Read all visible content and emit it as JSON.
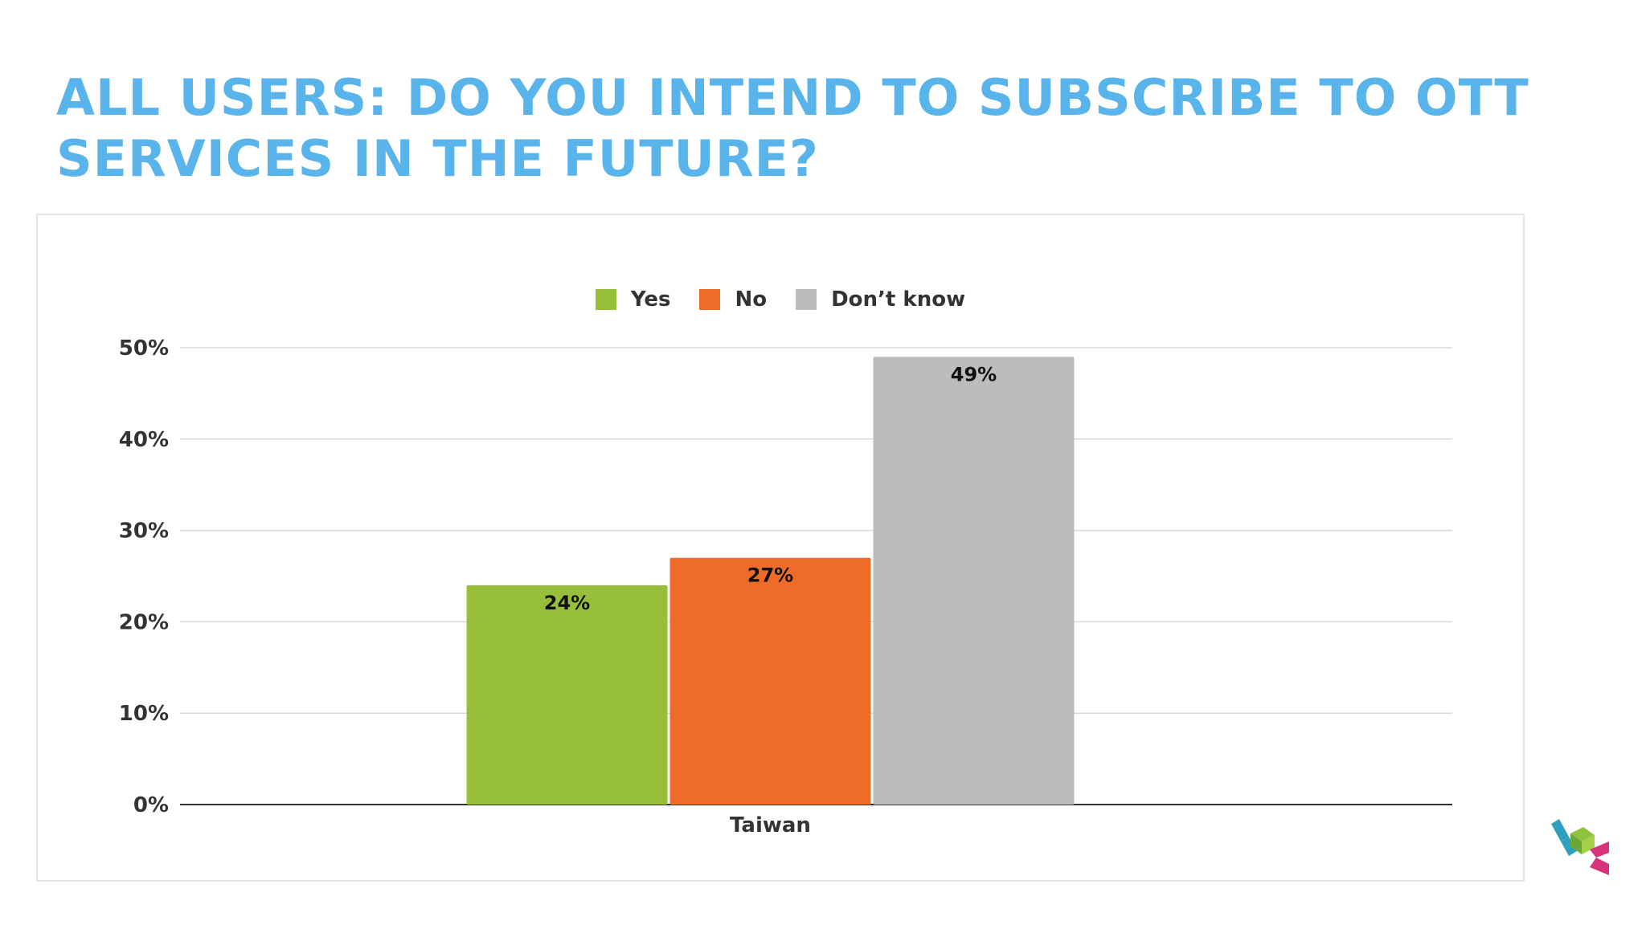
{
  "slide": {
    "title": "ALL USERS: DO YOU INTEND TO SUBSCRIBE TO OTT SERVICES IN THE FUTURE?"
  },
  "chart_data": {
    "type": "bar",
    "categories": [
      "Taiwan"
    ],
    "series": [
      {
        "name": "Yes",
        "values": [
          24
        ],
        "color": "#98bf3a"
      },
      {
        "name": "No",
        "values": [
          27
        ],
        "color": "#ee6b2a"
      },
      {
        "name": "Don’t know",
        "values": [
          49
        ],
        "color": "#bcbbbd"
      }
    ],
    "data_labels": [
      "24%",
      "27%",
      "49%"
    ],
    "y_ticks": [
      "0%",
      "10%",
      "20%",
      "30%",
      "40%",
      "50%"
    ],
    "y_tick_values": [
      0,
      10,
      20,
      30,
      40,
      50
    ],
    "ylim": [
      0,
      50
    ],
    "y_unit": "%",
    "grid": true,
    "legend_position": "top-center"
  },
  "colors": {
    "title": "#5ab4ec",
    "gridline": "#d9d9dc",
    "axis": "#333333",
    "text": "#333333"
  },
  "logo": {
    "icon": "company-logo-icon"
  }
}
